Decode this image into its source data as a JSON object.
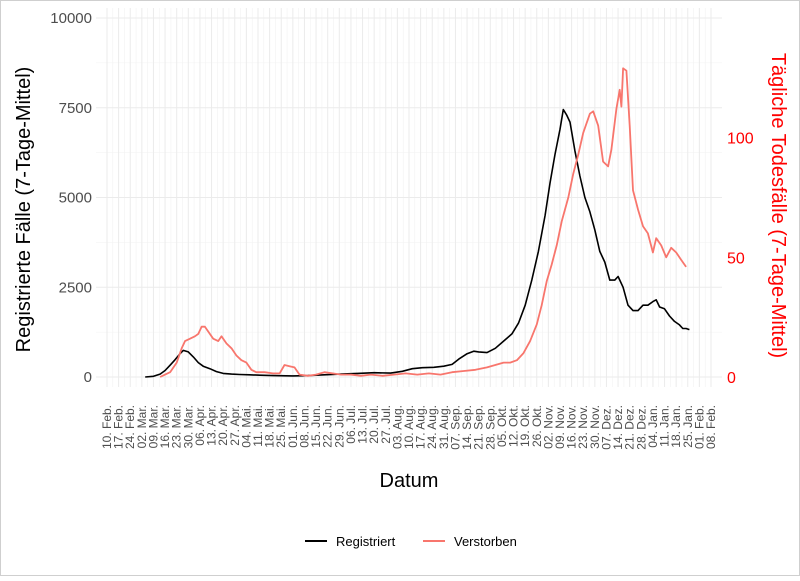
{
  "chart_data": {
    "type": "line",
    "title": "",
    "xlabel": "Datum",
    "ylabel": "Registrierte Fälle (7-Tage-Mittel)",
    "y2label": "Tägliche Todesfälle (7-Tage-Mittel)",
    "ylim": [
      0,
      10000
    ],
    "y2lim": [
      0,
      150
    ],
    "yticks": [
      "0",
      "2500",
      "5000",
      "7500",
      "10000"
    ],
    "y2ticks": [
      "0",
      "50",
      "100"
    ],
    "y2color": "#ff0000",
    "xticks": [
      "10. Feb.",
      "17. Feb.",
      "24. Feb.",
      "02. Mar.",
      "09. Mar.",
      "16. Mar.",
      "23. Mar.",
      "30. Mar.",
      "06. Apr.",
      "13. Apr.",
      "20. Apr.",
      "27. Apr.",
      "04. Mai.",
      "11. Mai.",
      "18. Mai.",
      "25. Mai.",
      "01. Jun.",
      "08. Jun.",
      "15. Jun.",
      "22. Jun.",
      "29. Jun.",
      "06. Jul.",
      "13. Jul.",
      "20. Jul.",
      "27. Jul.",
      "03. Aug.",
      "10. Aug.",
      "17. Aug.",
      "24. Aug.",
      "31. Aug.",
      "07. Sep.",
      "14. Sep.",
      "21. Sep.",
      "28. Sep.",
      "05. Okt.",
      "12. Okt.",
      "19. Okt.",
      "26. Okt.",
      "02. Nov.",
      "09. Nov.",
      "16. Nov.",
      "23. Nov.",
      "30. Nov.",
      "07. Dez.",
      "14. Dez.",
      "21. Dez.",
      "28. Dez.",
      "04. Jan.",
      "11. Jan.",
      "18. Jan.",
      "25. Jan.",
      "01. Feb.",
      "08. Feb."
    ],
    "grid": true,
    "legend_position": "bottom",
    "series": [
      {
        "name": "Registriert",
        "axis": "left",
        "color": "#000000",
        "points": [
          [
            "04. Mar.",
            0
          ],
          [
            "09. Mar.",
            20
          ],
          [
            "13. Mar.",
            80
          ],
          [
            "16. Mar.",
            180
          ],
          [
            "19. Mar.",
            330
          ],
          [
            "22. Mar.",
            480
          ],
          [
            "25. Mar.",
            650
          ],
          [
            "27. Mar.",
            740
          ],
          [
            "30. Mar.",
            700
          ],
          [
            "02. Apr.",
            560
          ],
          [
            "05. Apr.",
            400
          ],
          [
            "08. Apr.",
            300
          ],
          [
            "12. Apr.",
            230
          ],
          [
            "16. Apr.",
            150
          ],
          [
            "20. Apr.",
            100
          ],
          [
            "25. Apr.",
            80
          ],
          [
            "30. Apr.",
            70
          ],
          [
            "06. Mai.",
            60
          ],
          [
            "12. Mai.",
            50
          ],
          [
            "20. Mai.",
            40
          ],
          [
            "01. Jun.",
            30
          ],
          [
            "10. Jun.",
            40
          ],
          [
            "20. Jun.",
            60
          ],
          [
            "30. Jun.",
            80
          ],
          [
            "10. Jul.",
            100
          ],
          [
            "20. Jul.",
            120
          ],
          [
            "30. Jul.",
            110
          ],
          [
            "06. Aug.",
            160
          ],
          [
            "12. Aug.",
            230
          ],
          [
            "18. Aug.",
            260
          ],
          [
            "25. Aug.",
            270
          ],
          [
            "31. Aug.",
            300
          ],
          [
            "05. Sep.",
            350
          ],
          [
            "09. Sep.",
            500
          ],
          [
            "14. Sep.",
            650
          ],
          [
            "18. Sep.",
            720
          ],
          [
            "21. Sep.",
            700
          ],
          [
            "26. Sep.",
            680
          ],
          [
            "01. Okt.",
            800
          ],
          [
            "06. Okt.",
            1000
          ],
          [
            "11. Okt.",
            1200
          ],
          [
            "15. Okt.",
            1500
          ],
          [
            "19. Okt.",
            2000
          ],
          [
            "23. Okt.",
            2700
          ],
          [
            "27. Okt.",
            3500
          ],
          [
            "31. Okt.",
            4500
          ],
          [
            "03. Nov.",
            5400
          ],
          [
            "06. Nov.",
            6200
          ],
          [
            "09. Nov.",
            6900
          ],
          [
            "11. Nov.",
            7450
          ],
          [
            "13. Nov.",
            7300
          ],
          [
            "15. Nov.",
            7100
          ],
          [
            "18. Nov.",
            6300
          ],
          [
            "21. Nov.",
            5600
          ],
          [
            "24. Nov.",
            5000
          ],
          [
            "27. Nov.",
            4600
          ],
          [
            "30. Nov.",
            4100
          ],
          [
            "03. Dez.",
            3500
          ],
          [
            "06. Dez.",
            3200
          ],
          [
            "09. Dez.",
            2700
          ],
          [
            "12. Dez.",
            2700
          ],
          [
            "14. Dez.",
            2800
          ],
          [
            "17. Dez.",
            2500
          ],
          [
            "20. Dez.",
            2000
          ],
          [
            "23. Dez.",
            1850
          ],
          [
            "26. Dez.",
            1850
          ],
          [
            "29. Dez.",
            2000
          ],
          [
            "01. Jan.",
            2000
          ],
          [
            "04. Jan.",
            2100
          ],
          [
            "06. Jan.",
            2150
          ],
          [
            "08. Jan.",
            1950
          ],
          [
            "11. Jan.",
            1900
          ],
          [
            "14. Jan.",
            1700
          ],
          [
            "17. Jan.",
            1550
          ],
          [
            "20. Jan.",
            1450
          ],
          [
            "22. Jan.",
            1350
          ],
          [
            "24. Jan.",
            1350
          ],
          [
            "26. Jan.",
            1320
          ]
        ]
      },
      {
        "name": "Verstorben",
        "axis": "right",
        "color": "#f8766d",
        "points": [
          [
            "13. Mar.",
            0
          ],
          [
            "16. Mar.",
            1
          ],
          [
            "19. Mar.",
            2
          ],
          [
            "23. Mar.",
            6
          ],
          [
            "26. Mar.",
            12
          ],
          [
            "28. Mar.",
            15
          ],
          [
            "31. Mar.",
            16
          ],
          [
            "03. Apr.",
            17
          ],
          [
            "05. Apr.",
            18
          ],
          [
            "07. Apr.",
            21
          ],
          [
            "09. Apr.",
            21
          ],
          [
            "11. Apr.",
            19
          ],
          [
            "14. Apr.",
            16
          ],
          [
            "17. Apr.",
            15
          ],
          [
            "19. Apr.",
            17
          ],
          [
            "22. Apr.",
            14
          ],
          [
            "25. Apr.",
            12
          ],
          [
            "28. Apr.",
            9
          ],
          [
            "01. Mai.",
            7
          ],
          [
            "04. Mai.",
            6
          ],
          [
            "07. Mai.",
            3
          ],
          [
            "10. Mai.",
            2
          ],
          [
            "15. Mai.",
            2
          ],
          [
            "20. Mai.",
            1.5
          ],
          [
            "24. Mai.",
            1.5
          ],
          [
            "27. Mai.",
            5
          ],
          [
            "30. Mai.",
            4.5
          ],
          [
            "02. Jun.",
            4
          ],
          [
            "05. Jun.",
            1
          ],
          [
            "10. Jun.",
            0.5
          ],
          [
            "15. Jun.",
            1
          ],
          [
            "20. Jun.",
            2
          ],
          [
            "25. Jun.",
            1.5
          ],
          [
            "30. Jun.",
            1
          ],
          [
            "06. Jul.",
            1
          ],
          [
            "12. Jul.",
            0.5
          ],
          [
            "18. Jul.",
            1
          ],
          [
            "25. Jul.",
            0.5
          ],
          [
            "01. Aug.",
            1
          ],
          [
            "08. Aug.",
            1.5
          ],
          [
            "15. Aug.",
            1
          ],
          [
            "22. Aug.",
            1.5
          ],
          [
            "29. Aug.",
            1
          ],
          [
            "05. Sep.",
            2
          ],
          [
            "12. Sep.",
            2.5
          ],
          [
            "19. Sep.",
            3
          ],
          [
            "26. Sep.",
            4
          ],
          [
            "01. Okt.",
            5
          ],
          [
            "06. Okt.",
            6
          ],
          [
            "10. Okt.",
            6
          ],
          [
            "14. Okt.",
            7
          ],
          [
            "18. Okt.",
            10
          ],
          [
            "22. Okt.",
            15
          ],
          [
            "26. Okt.",
            22
          ],
          [
            "29. Okt.",
            30
          ],
          [
            "01. Nov.",
            40
          ],
          [
            "04. Nov.",
            47
          ],
          [
            "07. Nov.",
            55
          ],
          [
            "10. Nov.",
            65
          ],
          [
            "14. Nov.",
            75
          ],
          [
            "17. Nov.",
            85
          ],
          [
            "20. Nov.",
            93
          ],
          [
            "23. Nov.",
            102
          ],
          [
            "27. Nov.",
            110
          ],
          [
            "29. Nov.",
            111
          ],
          [
            "02. Dez.",
            105
          ],
          [
            "05. Dez.",
            90
          ],
          [
            "08. Dez.",
            88
          ],
          [
            "10. Dez.",
            95
          ],
          [
            "13. Dez.",
            112
          ],
          [
            "15. Dez.",
            120
          ],
          [
            "16. Dez.",
            113
          ],
          [
            "17. Dez.",
            129
          ],
          [
            "19. Dez.",
            128
          ],
          [
            "21. Dez.",
            105
          ],
          [
            "23. Dez.",
            78
          ],
          [
            "26. Dez.",
            70
          ],
          [
            "29. Dez.",
            63
          ],
          [
            "01. Jan.",
            60
          ],
          [
            "04. Jan.",
            52
          ],
          [
            "06. Jan.",
            58
          ],
          [
            "09. Jan.",
            55
          ],
          [
            "12. Jan.",
            50
          ],
          [
            "15. Jan.",
            54
          ],
          [
            "18. Jan.",
            52
          ],
          [
            "21. Jan.",
            49
          ],
          [
            "24. Jan.",
            46
          ]
        ]
      }
    ]
  }
}
